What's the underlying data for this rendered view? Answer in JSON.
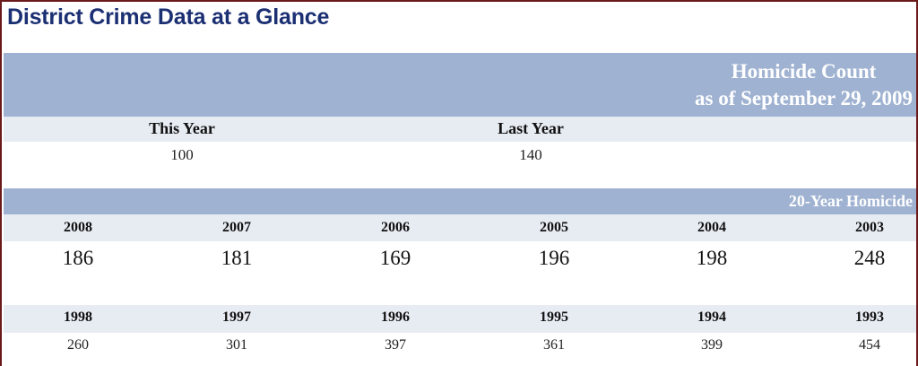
{
  "title": "District Crime Data at a Glance",
  "homicide_count": {
    "header_line1": "Homicide Count",
    "header_line2": "as of September 29, 2009",
    "this_year_label": "This Year",
    "this_year_value": "100",
    "last_year_label": "Last Year",
    "last_year_value": "140"
  },
  "twenty_year": {
    "header": "20-Year Homicide",
    "row1_years": [
      "2008",
      "2007",
      "2006",
      "2005",
      "2004",
      "2003"
    ],
    "row1_values": [
      "186",
      "181",
      "169",
      "196",
      "198",
      "248"
    ],
    "row2_years": [
      "1998",
      "1997",
      "1996",
      "1995",
      "1994",
      "1993"
    ],
    "row2_values": [
      "260",
      "301",
      "397",
      "361",
      "399",
      "454"
    ]
  },
  "colors": {
    "title": "#1b2f73",
    "band": "#9fb2d1",
    "light_row": "#e7ecf3",
    "frame": "#6b1a1a"
  }
}
